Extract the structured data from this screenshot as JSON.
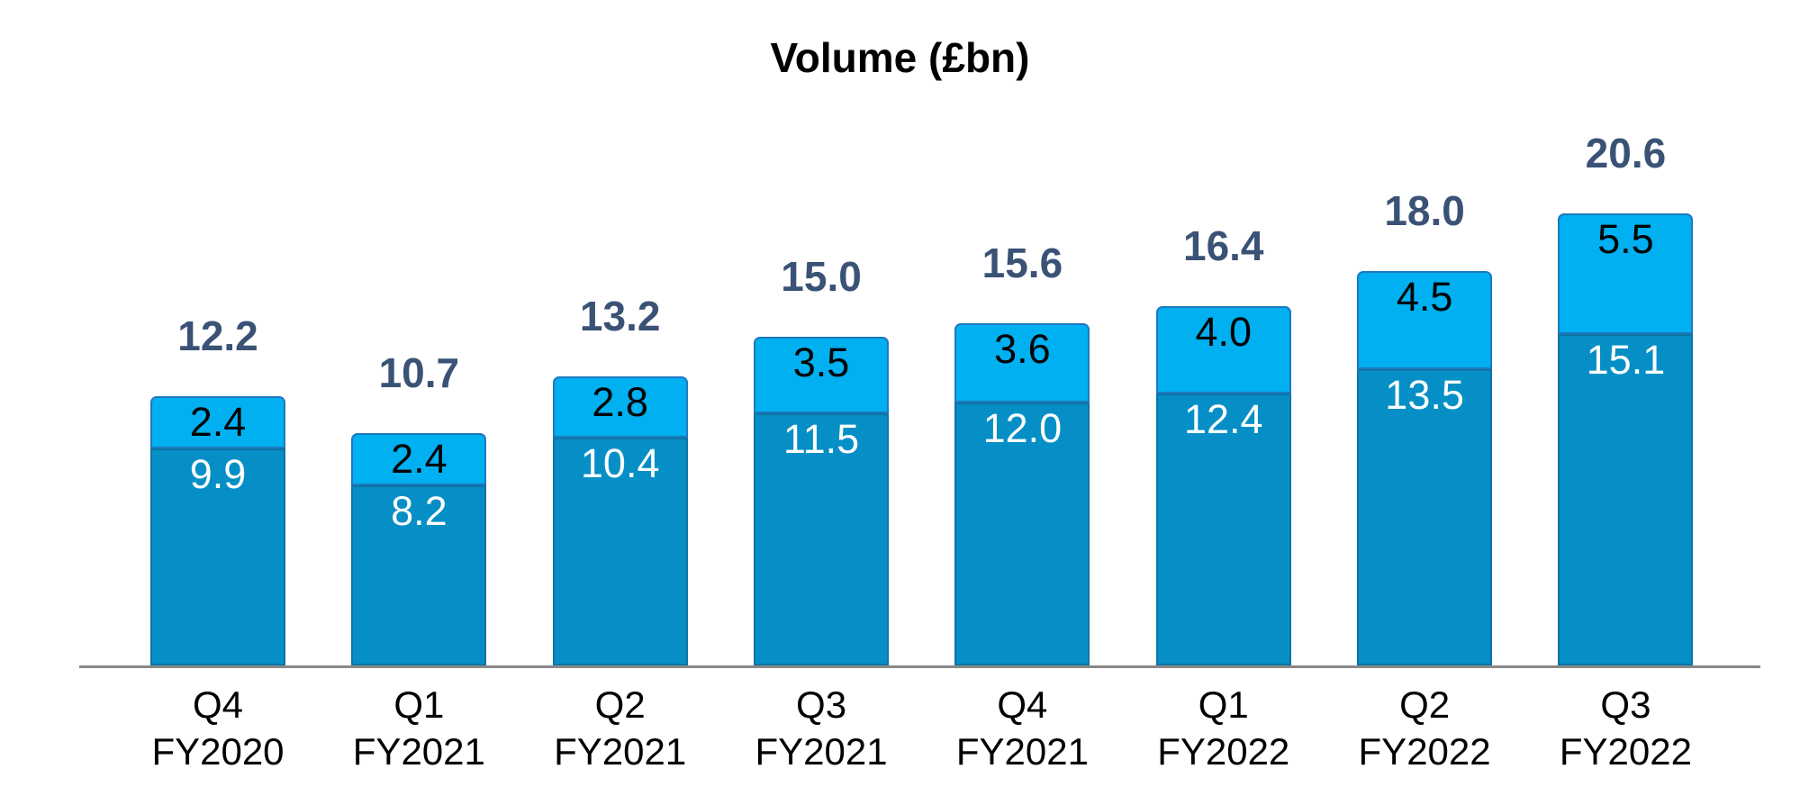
{
  "chart_data": {
    "type": "bar",
    "stacked": true,
    "title": "Volume (£bn)",
    "categories": [
      {
        "quarter": "Q4",
        "fiscal_year": "FY2020"
      },
      {
        "quarter": "Q1",
        "fiscal_year": "FY2021"
      },
      {
        "quarter": "Q2",
        "fiscal_year": "FY2021"
      },
      {
        "quarter": "Q3",
        "fiscal_year": "FY2021"
      },
      {
        "quarter": "Q4",
        "fiscal_year": "FY2021"
      },
      {
        "quarter": "Q1",
        "fiscal_year": "FY2022"
      },
      {
        "quarter": "Q2",
        "fiscal_year": "FY2022"
      },
      {
        "quarter": "Q3",
        "fiscal_year": "FY2022"
      }
    ],
    "series": [
      {
        "name": "bottom-segment",
        "color": "#058FC6",
        "border_color": "#0E74A4",
        "label_color": "#FFFFFF",
        "values": [
          9.9,
          8.2,
          10.4,
          11.5,
          12.0,
          12.4,
          13.5,
          15.1
        ]
      },
      {
        "name": "top-segment",
        "color": "#00B0F0",
        "border_color": "#1D79C0",
        "label_color": "#000000",
        "values": [
          2.4,
          2.4,
          2.8,
          3.5,
          3.6,
          4.0,
          4.5,
          5.5
        ]
      }
    ],
    "totals": [
      12.2,
      10.7,
      13.2,
      15.0,
      15.6,
      16.4,
      18.0,
      20.6
    ],
    "total_label_color": "#3A5275",
    "value_decimals": 1,
    "axis_line_color": "#898989",
    "grid": false,
    "legend": "none",
    "y_axis_visible": false
  }
}
